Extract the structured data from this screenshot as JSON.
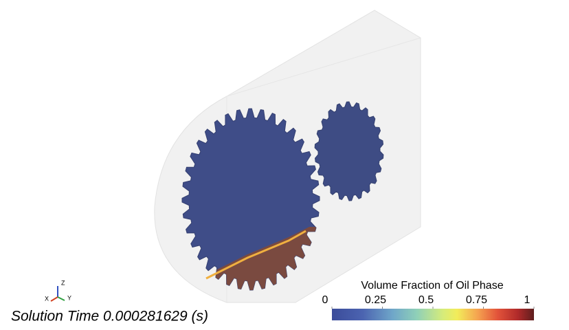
{
  "colorbar": {
    "title": "Volume Fraction of Oil Phase",
    "range": [
      0,
      1
    ],
    "ticks": [
      0,
      0.25,
      0.5,
      0.75,
      1
    ]
  },
  "solution_time": "Solution Time 0.000281629 (s)",
  "triad": {
    "x": "X",
    "y": "Y",
    "z": "Z"
  }
}
